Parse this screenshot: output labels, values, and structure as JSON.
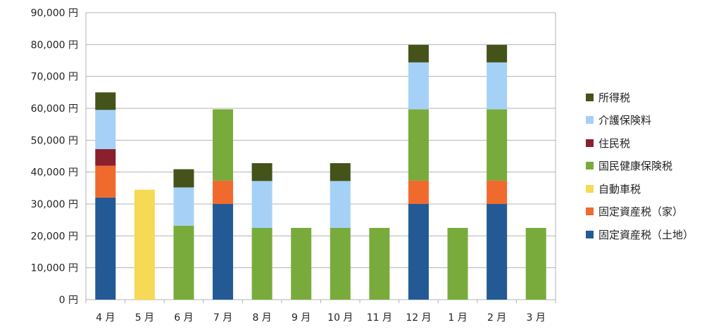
{
  "chart_data": {
    "type": "bar",
    "stacked": true,
    "categories": [
      "4 月",
      "5 月",
      "6 月",
      "7 月",
      "8 月",
      "9 月",
      "10 月",
      "11 月",
      "12 月",
      "1 月",
      "2 月",
      "3 月"
    ],
    "ylim": [
      0,
      90000
    ],
    "y_ticks": [
      0,
      10000,
      20000,
      30000,
      40000,
      50000,
      60000,
      70000,
      80000,
      90000
    ],
    "y_tick_labels": [
      "0 円",
      "10,000 円",
      "20,000 円",
      "30,000 円",
      "40,000 円",
      "50,000 円",
      "60,000 円",
      "70,000 円",
      "80,000 円",
      "90,000 円"
    ],
    "grid": "horizontal",
    "legend_position": "right",
    "series": [
      {
        "name": "固定資産税（土地）",
        "color": "#235a96",
        "values": [
          32000,
          0,
          0,
          30000,
          0,
          0,
          0,
          0,
          30000,
          0,
          30000,
          0
        ]
      },
      {
        "name": "固定資産税（家）",
        "color": "#f06a2e",
        "values": [
          10000,
          0,
          0,
          7300,
          0,
          0,
          0,
          0,
          7300,
          0,
          7300,
          0
        ]
      },
      {
        "name": "自動車税",
        "color": "#f6d955",
        "values": [
          0,
          34500,
          0,
          0,
          0,
          0,
          0,
          0,
          0,
          0,
          0,
          0
        ]
      },
      {
        "name": "国民健康保険税",
        "color": "#79ab3c",
        "values": [
          0,
          0,
          23200,
          22400,
          22500,
          22500,
          22500,
          22500,
          22400,
          22500,
          22400,
          22500
        ]
      },
      {
        "name": "住民税",
        "color": "#8b1f2e",
        "values": [
          5200,
          0,
          0,
          0,
          0,
          0,
          0,
          0,
          0,
          0,
          0,
          0
        ]
      },
      {
        "name": "介護保険料",
        "color": "#a6d1f7",
        "values": [
          12300,
          0,
          12000,
          0,
          14700,
          0,
          14700,
          0,
          14700,
          0,
          14700,
          0
        ]
      },
      {
        "name": "所得税",
        "color": "#44531a",
        "values": [
          5500,
          0,
          5700,
          0,
          5600,
          0,
          5600,
          0,
          5500,
          0,
          5500,
          0
        ]
      }
    ]
  }
}
